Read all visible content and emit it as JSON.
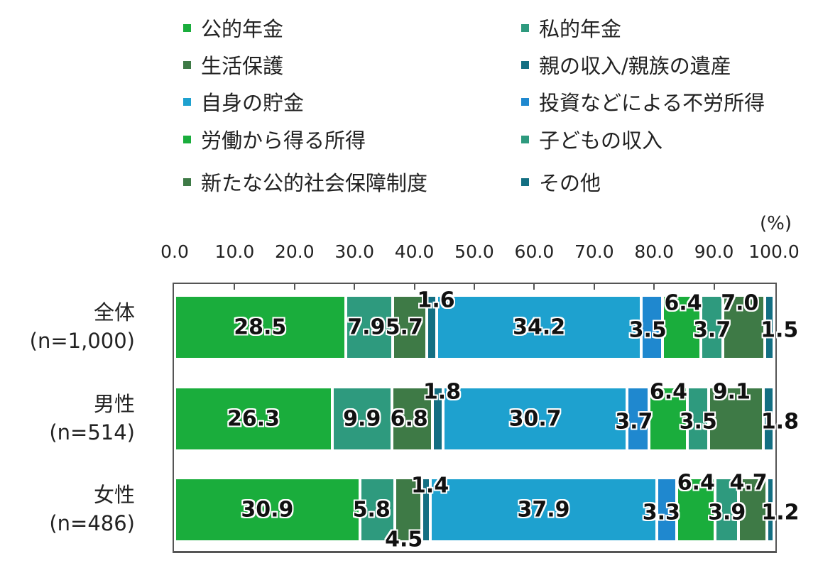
{
  "chart_data": {
    "type": "bar",
    "orientation": "horizontal",
    "stacked": true,
    "title": "",
    "xlabel": "",
    "ylabel": "",
    "unit_label": "(%)",
    "xlim": [
      0,
      100
    ],
    "x_ticks": [
      "0.0",
      "10.0",
      "20.0",
      "30.0",
      "40.0",
      "50.0",
      "60.0",
      "70.0",
      "80.0",
      "90.0",
      "100.0"
    ],
    "grid": false,
    "legend_position": "top",
    "categories": [
      {
        "name": "全体",
        "n_label": "(n=1,000)"
      },
      {
        "name": "男性",
        "n_label": "(n=514)"
      },
      {
        "name": "女性",
        "n_label": "(n=486)"
      }
    ],
    "series": [
      {
        "name": "公的年金",
        "color": "#1aad3c",
        "values": [
          28.5,
          26.3,
          30.9
        ]
      },
      {
        "name": "私的年金",
        "color": "#2e9a7e",
        "values": [
          7.9,
          9.9,
          5.8
        ]
      },
      {
        "name": "生活保護",
        "color": "#3e7a46",
        "values": [
          5.7,
          6.8,
          4.5
        ]
      },
      {
        "name": "親の収入/親族の遺産",
        "color": "#136f82",
        "values": [
          1.6,
          1.8,
          1.4
        ]
      },
      {
        "name": "自身の貯金",
        "color": "#1ea1cf",
        "values": [
          34.2,
          30.7,
          37.9
        ]
      },
      {
        "name": "投資などによる不労所得",
        "color": "#1f88cf",
        "values": [
          3.5,
          3.7,
          3.3
        ]
      },
      {
        "name": "労働から得る所得",
        "color": "#1aad3c",
        "values": [
          6.4,
          6.4,
          6.4
        ]
      },
      {
        "name": "子どもの収入",
        "color": "#2e9a7e",
        "values": [
          3.7,
          3.5,
          3.9
        ]
      },
      {
        "name": "新たな公的社会保障制度",
        "color": "#3e7a46",
        "values": [
          7.0,
          9.1,
          4.7
        ]
      },
      {
        "name": "その他",
        "color": "#136f82",
        "values": [
          1.5,
          1.8,
          1.2
        ]
      }
    ]
  },
  "legend": {
    "left": [
      "公的年金",
      "生活保護",
      "自身の貯金",
      "労働から得る所得",
      "新たな公的社会保障制度"
    ],
    "right": [
      "私的年金",
      "親の収入/親族の遺産",
      "投資などによる不労所得",
      "子どもの収入",
      "その他"
    ]
  },
  "rows": [
    {
      "name": "全体",
      "n_label": "(n=1,000)"
    },
    {
      "name": "男性",
      "n_label": "(n=514)"
    },
    {
      "name": "女性",
      "n_label": "(n=486)"
    }
  ]
}
